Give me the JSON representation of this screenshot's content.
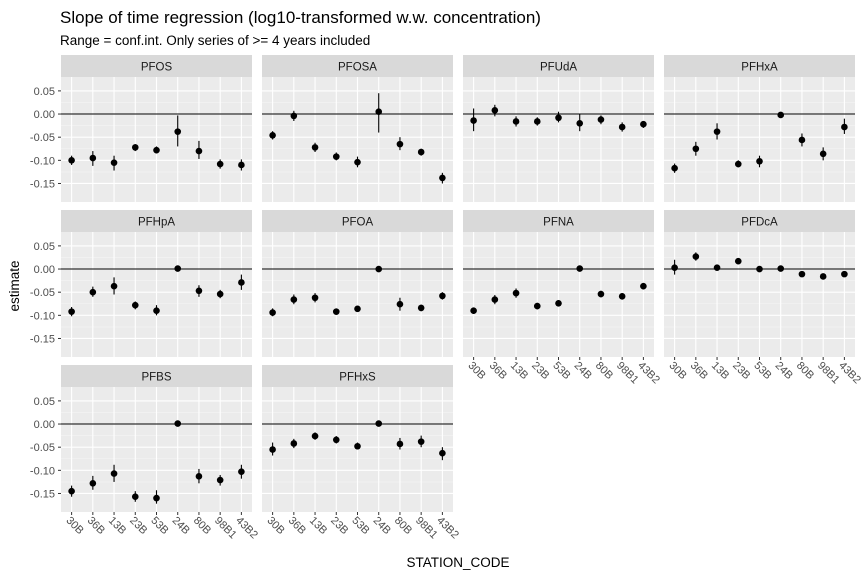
{
  "chart_data": {
    "type": "scatter",
    "title": "Slope of time regression (log10-transformed w.w. concentration)",
    "subtitle": "Range = conf.int. Only series of >= 4 years included",
    "xlabel": "STATION_CODE",
    "ylabel": "estimate",
    "ylim": [
      -0.19,
      0.08
    ],
    "yticks": [
      -0.15,
      -0.1,
      -0.05,
      0.0,
      0.05
    ],
    "ytick_labels": [
      "-0.15",
      "-0.10",
      "-0.05",
      "0.00",
      "0.05"
    ],
    "categories": [
      "30B",
      "36B",
      "13B",
      "23B",
      "53B",
      "24B",
      "80B",
      "98B1",
      "43B2"
    ],
    "reference_line": 0,
    "grid": true,
    "facets": [
      {
        "name": "PFOS",
        "points": [
          {
            "x": "30B",
            "y": -0.1,
            "lo": -0.11,
            "hi": -0.09
          },
          {
            "x": "36B",
            "y": -0.095,
            "lo": -0.112,
            "hi": -0.08
          },
          {
            "x": "13B",
            "y": -0.105,
            "lo": -0.122,
            "hi": -0.09
          },
          {
            "x": "23B",
            "y": -0.072,
            "lo": -0.08,
            "hi": -0.065
          },
          {
            "x": "53B",
            "y": -0.078,
            "lo": -0.085,
            "hi": -0.07
          },
          {
            "x": "24B",
            "y": -0.038,
            "lo": -0.07,
            "hi": -0.003
          },
          {
            "x": "80B",
            "y": -0.08,
            "lo": -0.097,
            "hi": -0.058
          },
          {
            "x": "98B1",
            "y": -0.108,
            "lo": -0.118,
            "hi": -0.098
          },
          {
            "x": "43B2",
            "y": -0.11,
            "lo": -0.122,
            "hi": -0.098
          }
        ]
      },
      {
        "name": "PFOSA",
        "points": [
          {
            "x": "30B",
            "y": -0.046,
            "lo": -0.055,
            "hi": -0.037
          },
          {
            "x": "36B",
            "y": -0.004,
            "lo": -0.015,
            "hi": 0.007
          },
          {
            "x": "13B",
            "y": -0.072,
            "lo": -0.082,
            "hi": -0.062
          },
          {
            "x": "23B",
            "y": -0.092,
            "lo": -0.1,
            "hi": -0.083
          },
          {
            "x": "53B",
            "y": -0.104,
            "lo": -0.115,
            "hi": -0.092
          },
          {
            "x": "24B",
            "y": 0.005,
            "lo": -0.04,
            "hi": 0.045
          },
          {
            "x": "80B",
            "y": -0.065,
            "lo": -0.078,
            "hi": -0.05
          },
          {
            "x": "98B1",
            "y": -0.082,
            "lo": -0.09,
            "hi": -0.075
          },
          {
            "x": "43B2",
            "y": -0.138,
            "lo": -0.15,
            "hi": -0.127
          }
        ]
      },
      {
        "name": "PFUdA",
        "points": [
          {
            "x": "30B",
            "y": -0.014,
            "lo": -0.037,
            "hi": 0.012
          },
          {
            "x": "36B",
            "y": 0.008,
            "lo": -0.005,
            "hi": 0.02
          },
          {
            "x": "13B",
            "y": -0.016,
            "lo": -0.027,
            "hi": -0.005
          },
          {
            "x": "23B",
            "y": -0.016,
            "lo": -0.025,
            "hi": -0.007
          },
          {
            "x": "53B",
            "y": -0.008,
            "lo": -0.018,
            "hi": 0.005
          },
          {
            "x": "24B",
            "y": -0.02,
            "lo": -0.037,
            "hi": 0.0
          },
          {
            "x": "80B",
            "y": -0.012,
            "lo": -0.022,
            "hi": -0.003
          },
          {
            "x": "98B1",
            "y": -0.028,
            "lo": -0.038,
            "hi": -0.018
          },
          {
            "x": "43B2",
            "y": -0.022,
            "lo": -0.03,
            "hi": -0.015
          }
        ]
      },
      {
        "name": "PFHxA",
        "points": [
          {
            "x": "30B",
            "y": -0.117,
            "lo": -0.127,
            "hi": -0.107
          },
          {
            "x": "36B",
            "y": -0.075,
            "lo": -0.09,
            "hi": -0.06
          },
          {
            "x": "13B",
            "y": -0.038,
            "lo": -0.055,
            "hi": -0.02
          },
          {
            "x": "23B",
            "y": -0.108,
            "lo": -0.115,
            "hi": -0.1
          },
          {
            "x": "53B",
            "y": -0.102,
            "lo": -0.115,
            "hi": -0.09
          },
          {
            "x": "24B",
            "y": -0.002,
            "lo": -0.006,
            "hi": 0.002
          },
          {
            "x": "80B",
            "y": -0.056,
            "lo": -0.07,
            "hi": -0.042
          },
          {
            "x": "98B1",
            "y": -0.086,
            "lo": -0.1,
            "hi": -0.072
          },
          {
            "x": "43B2",
            "y": -0.028,
            "lo": -0.043,
            "hi": -0.01
          }
        ]
      },
      {
        "name": "PFHpA",
        "points": [
          {
            "x": "30B",
            "y": -0.092,
            "lo": -0.102,
            "hi": -0.082
          },
          {
            "x": "36B",
            "y": -0.05,
            "lo": -0.06,
            "hi": -0.038
          },
          {
            "x": "13B",
            "y": -0.037,
            "lo": -0.055,
            "hi": -0.018
          },
          {
            "x": "23B",
            "y": -0.078,
            "lo": -0.087,
            "hi": -0.07
          },
          {
            "x": "53B",
            "y": -0.09,
            "lo": -0.1,
            "hi": -0.078
          },
          {
            "x": "24B",
            "y": 0.001,
            "lo": -0.003,
            "hi": 0.004
          },
          {
            "x": "80B",
            "y": -0.047,
            "lo": -0.06,
            "hi": -0.035
          },
          {
            "x": "98B1",
            "y": -0.054,
            "lo": -0.063,
            "hi": -0.045
          },
          {
            "x": "43B2",
            "y": -0.029,
            "lo": -0.045,
            "hi": -0.012
          }
        ]
      },
      {
        "name": "PFOA",
        "points": [
          {
            "x": "30B",
            "y": -0.094,
            "lo": -0.102,
            "hi": -0.085
          },
          {
            "x": "36B",
            "y": -0.066,
            "lo": -0.076,
            "hi": -0.055
          },
          {
            "x": "13B",
            "y": -0.062,
            "lo": -0.072,
            "hi": -0.052
          },
          {
            "x": "23B",
            "y": -0.092,
            "lo": -0.099,
            "hi": -0.085
          },
          {
            "x": "53B",
            "y": -0.086,
            "lo": -0.092,
            "hi": -0.08
          },
          {
            "x": "24B",
            "y": 0.0,
            "lo": -0.004,
            "hi": 0.003
          },
          {
            "x": "80B",
            "y": -0.076,
            "lo": -0.09,
            "hi": -0.062
          },
          {
            "x": "98B1",
            "y": -0.084,
            "lo": -0.091,
            "hi": -0.077
          },
          {
            "x": "43B2",
            "y": -0.058,
            "lo": -0.066,
            "hi": -0.05
          }
        ]
      },
      {
        "name": "PFNA",
        "points": [
          {
            "x": "30B",
            "y": -0.09,
            "lo": -0.097,
            "hi": -0.083
          },
          {
            "x": "36B",
            "y": -0.066,
            "lo": -0.076,
            "hi": -0.056
          },
          {
            "x": "13B",
            "y": -0.052,
            "lo": -0.062,
            "hi": -0.042
          },
          {
            "x": "23B",
            "y": -0.08,
            "lo": -0.087,
            "hi": -0.073
          },
          {
            "x": "53B",
            "y": -0.074,
            "lo": -0.081,
            "hi": -0.067
          },
          {
            "x": "24B",
            "y": 0.001,
            "lo": -0.003,
            "hi": 0.004
          },
          {
            "x": "80B",
            "y": -0.054,
            "lo": -0.061,
            "hi": -0.047
          },
          {
            "x": "98B1",
            "y": -0.059,
            "lo": -0.066,
            "hi": -0.052
          },
          {
            "x": "43B2",
            "y": -0.037,
            "lo": -0.044,
            "hi": -0.03
          }
        ]
      },
      {
        "name": "PFDcA",
        "points": [
          {
            "x": "30B",
            "y": 0.003,
            "lo": -0.012,
            "hi": 0.02
          },
          {
            "x": "36B",
            "y": 0.027,
            "lo": 0.018,
            "hi": 0.036
          },
          {
            "x": "13B",
            "y": 0.003,
            "lo": -0.002,
            "hi": 0.008
          },
          {
            "x": "23B",
            "y": 0.017,
            "lo": 0.011,
            "hi": 0.022
          },
          {
            "x": "53B",
            "y": 0.0,
            "lo": -0.005,
            "hi": 0.005
          },
          {
            "x": "24B",
            "y": 0.001,
            "lo": -0.003,
            "hi": 0.005
          },
          {
            "x": "80B",
            "y": -0.011,
            "lo": -0.016,
            "hi": -0.006
          },
          {
            "x": "98B1",
            "y": -0.016,
            "lo": -0.022,
            "hi": -0.01
          },
          {
            "x": "43B2",
            "y": -0.011,
            "lo": -0.016,
            "hi": -0.006
          }
        ]
      },
      {
        "name": "PFBS",
        "points": [
          {
            "x": "30B",
            "y": -0.145,
            "lo": -0.157,
            "hi": -0.133
          },
          {
            "x": "36B",
            "y": -0.128,
            "lo": -0.142,
            "hi": -0.112
          },
          {
            "x": "13B",
            "y": -0.107,
            "lo": -0.125,
            "hi": -0.088
          },
          {
            "x": "23B",
            "y": -0.157,
            "lo": -0.168,
            "hi": -0.145
          },
          {
            "x": "53B",
            "y": -0.16,
            "lo": -0.172,
            "hi": -0.143
          },
          {
            "x": "24B",
            "y": 0.001,
            "lo": -0.003,
            "hi": 0.004
          },
          {
            "x": "80B",
            "y": -0.113,
            "lo": -0.128,
            "hi": -0.097
          },
          {
            "x": "98B1",
            "y": -0.121,
            "lo": -0.133,
            "hi": -0.11
          },
          {
            "x": "43B2",
            "y": -0.103,
            "lo": -0.118,
            "hi": -0.088
          }
        ]
      },
      {
        "name": "PFHxS",
        "points": [
          {
            "x": "30B",
            "y": -0.055,
            "lo": -0.068,
            "hi": -0.04
          },
          {
            "x": "36B",
            "y": -0.042,
            "lo": -0.052,
            "hi": -0.032
          },
          {
            "x": "13B",
            "y": -0.026,
            "lo": -0.034,
            "hi": -0.018
          },
          {
            "x": "23B",
            "y": -0.034,
            "lo": -0.042,
            "hi": -0.026
          },
          {
            "x": "53B",
            "y": -0.048,
            "lo": -0.055,
            "hi": -0.04
          },
          {
            "x": "24B",
            "y": 0.001,
            "lo": -0.003,
            "hi": 0.004
          },
          {
            "x": "80B",
            "y": -0.043,
            "lo": -0.055,
            "hi": -0.03
          },
          {
            "x": "98B1",
            "y": -0.038,
            "lo": -0.05,
            "hi": -0.025
          },
          {
            "x": "43B2",
            "y": -0.063,
            "lo": -0.078,
            "hi": -0.05
          }
        ]
      }
    ]
  },
  "colors": {
    "panel_bg": "#EBEBEB",
    "strip_bg": "#D9D9D9",
    "grid_major": "#FFFFFF",
    "point": "#000000",
    "reference_line": "#000000",
    "tick_text": "#4D4D4D"
  }
}
